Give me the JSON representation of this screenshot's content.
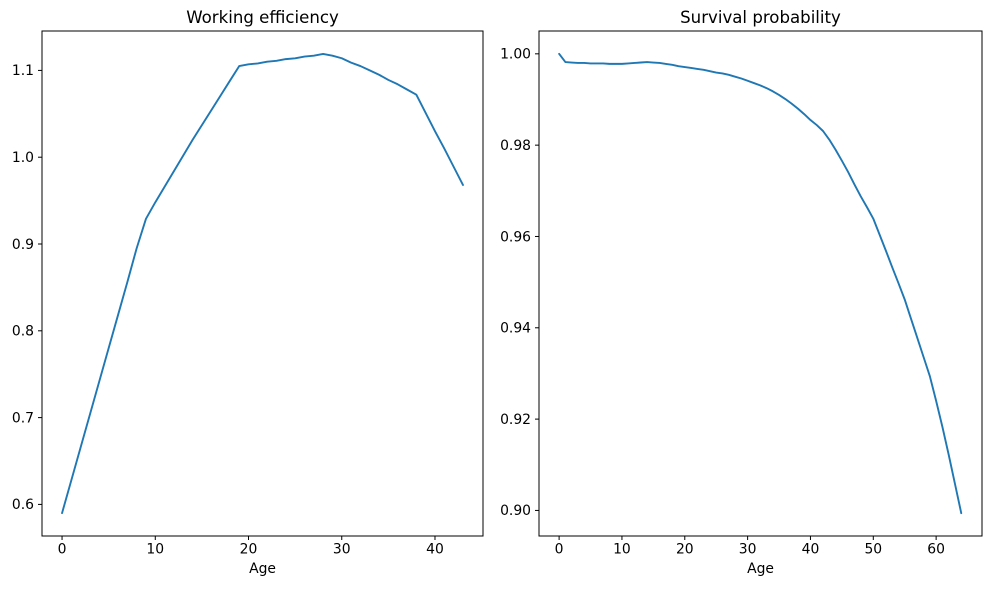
{
  "figure": {
    "background": "#ffffff",
    "text_color": "#000000"
  },
  "chart_data": [
    {
      "type": "line",
      "name": "working-efficiency",
      "title": "Working efficiency",
      "xlabel": "Age",
      "ylabel": "",
      "legend": "none",
      "grid": false,
      "line_color": "#1f77b4",
      "xlim": [
        -2.15,
        45.15
      ],
      "ylim": [
        0.5636,
        1.1454
      ],
      "x_ticks": [
        0,
        10,
        20,
        30,
        40
      ],
      "x_tick_labels": [
        "0",
        "10",
        "20",
        "30",
        "40"
      ],
      "y_ticks": [
        0.6,
        0.7,
        0.8,
        0.9,
        1.0,
        1.1
      ],
      "y_tick_labels": [
        "0.6",
        "0.7",
        "0.8",
        "0.9",
        "1.0",
        "1.1"
      ],
      "x": [
        0,
        1,
        2,
        3,
        4,
        5,
        6,
        7,
        8,
        9,
        10,
        11,
        12,
        13,
        14,
        15,
        16,
        17,
        18,
        19,
        20,
        21,
        22,
        23,
        24,
        25,
        26,
        27,
        28,
        29,
        30,
        31,
        32,
        33,
        34,
        35,
        36,
        37,
        38,
        39,
        40,
        41,
        42,
        43
      ],
      "y": [
        0.59,
        0.628,
        0.666,
        0.704,
        0.742,
        0.78,
        0.818,
        0.856,
        0.895,
        0.929,
        0.948,
        0.966,
        0.984,
        1.002,
        1.02,
        1.037,
        1.054,
        1.071,
        1.088,
        1.105,
        1.107,
        1.108,
        1.11,
        1.111,
        1.113,
        1.114,
        1.116,
        1.117,
        1.119,
        1.117,
        1.114,
        1.109,
        1.105,
        1.1,
        1.095,
        1.089,
        1.084,
        1.078,
        1.072,
        1.051,
        1.03,
        1.01,
        0.989,
        0.968
      ]
    },
    {
      "type": "line",
      "name": "survival-probability",
      "title": "Survival probability",
      "xlabel": "Age",
      "ylabel": "",
      "legend": "none",
      "grid": false,
      "line_color": "#1f77b4",
      "xlim": [
        -3.2,
        67.3
      ],
      "ylim": [
        0.8944,
        1.005
      ],
      "x_ticks": [
        0,
        10,
        20,
        30,
        40,
        50,
        60
      ],
      "x_tick_labels": [
        "0",
        "10",
        "20",
        "30",
        "40",
        "50",
        "60"
      ],
      "y_ticks": [
        0.9,
        0.92,
        0.94,
        0.96,
        0.98,
        1.0
      ],
      "y_tick_labels": [
        "0.90",
        "0.92",
        "0.94",
        "0.96",
        "0.98",
        "1.00"
      ],
      "x": [
        0,
        1,
        2,
        3,
        4,
        5,
        6,
        7,
        8,
        9,
        10,
        11,
        12,
        13,
        14,
        15,
        16,
        17,
        18,
        19,
        20,
        21,
        22,
        23,
        24,
        25,
        26,
        27,
        28,
        29,
        30,
        31,
        32,
        33,
        34,
        35,
        36,
        37,
        38,
        39,
        40,
        41,
        42,
        43,
        44,
        45,
        46,
        47,
        48,
        49,
        50,
        51,
        52,
        53,
        54,
        55,
        56,
        57,
        58,
        59,
        60,
        61,
        62,
        63,
        64
      ],
      "y": [
        1.0,
        0.9982,
        0.9981,
        0.998,
        0.998,
        0.9979,
        0.9979,
        0.9979,
        0.9978,
        0.9978,
        0.9978,
        0.9979,
        0.998,
        0.9981,
        0.9982,
        0.9981,
        0.998,
        0.9978,
        0.9976,
        0.9973,
        0.9971,
        0.9969,
        0.9967,
        0.9965,
        0.9962,
        0.9959,
        0.9957,
        0.9954,
        0.995,
        0.9946,
        0.9941,
        0.9936,
        0.9931,
        0.9925,
        0.9918,
        0.991,
        0.9901,
        0.9891,
        0.988,
        0.9868,
        0.9855,
        0.9844,
        0.9831,
        0.9812,
        0.979,
        0.9766,
        0.9741,
        0.9714,
        0.9688,
        0.9664,
        0.9639,
        0.9604,
        0.9569,
        0.9533,
        0.9498,
        0.9462,
        0.942,
        0.9378,
        0.9336,
        0.9294,
        0.924,
        0.9183,
        0.9122,
        0.9058,
        0.8994
      ]
    }
  ]
}
